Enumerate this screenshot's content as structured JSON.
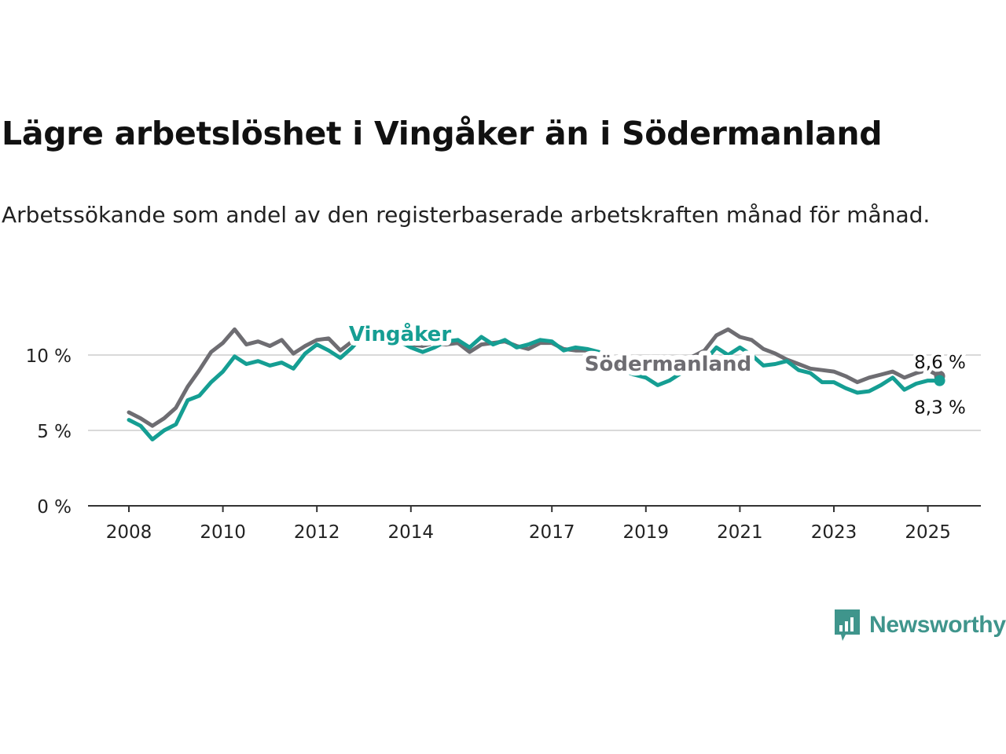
{
  "title": "Lägre arbetslöshet i Vingåker än i Södermanland",
  "subtitle": "Arbetssökande som andel av den registerbaserade arbetskraften månad för månad.",
  "brand": "Newsworthy",
  "chart_data": {
    "type": "line",
    "x_ticks": [
      "2008",
      "2010",
      "2012",
      "2014",
      "2017",
      "2019",
      "2021",
      "2023",
      "2025"
    ],
    "y_ticks": [
      "0 %",
      "5 %",
      "10 %"
    ],
    "ylim": [
      0,
      12
    ],
    "grid": "horizontal",
    "series": [
      {
        "name": "Södermanland",
        "color": "#6e6d72",
        "end_label": "8,6 %",
        "points": [
          [
            "2008-01",
            6.2
          ],
          [
            "2008-04",
            5.8
          ],
          [
            "2008-07",
            5.3
          ],
          [
            "2008-10",
            5.8
          ],
          [
            "2009-01",
            6.5
          ],
          [
            "2009-04",
            7.9
          ],
          [
            "2009-07",
            9.0
          ],
          [
            "2009-10",
            10.2
          ],
          [
            "2010-01",
            10.8
          ],
          [
            "2010-04",
            11.7
          ],
          [
            "2010-07",
            10.7
          ],
          [
            "2010-10",
            10.9
          ],
          [
            "2011-01",
            10.6
          ],
          [
            "2011-04",
            11.0
          ],
          [
            "2011-07",
            10.1
          ],
          [
            "2011-10",
            10.6
          ],
          [
            "2012-01",
            11.0
          ],
          [
            "2012-04",
            11.1
          ],
          [
            "2012-07",
            10.3
          ],
          [
            "2012-10",
            10.9
          ],
          [
            "2013-01",
            11.5
          ],
          [
            "2013-04",
            11.3
          ],
          [
            "2013-07",
            11.0
          ],
          [
            "2013-10",
            10.9
          ],
          [
            "2014-01",
            10.7
          ],
          [
            "2014-04",
            10.6
          ],
          [
            "2014-07",
            10.8
          ],
          [
            "2014-10",
            10.7
          ],
          [
            "2015-01",
            10.8
          ],
          [
            "2015-04",
            10.2
          ],
          [
            "2015-07",
            10.7
          ],
          [
            "2015-10",
            10.8
          ],
          [
            "2016-01",
            10.9
          ],
          [
            "2016-04",
            10.6
          ],
          [
            "2016-07",
            10.4
          ],
          [
            "2016-10",
            10.8
          ],
          [
            "2017-01",
            10.8
          ],
          [
            "2017-04",
            10.4
          ],
          [
            "2017-07",
            10.3
          ],
          [
            "2017-10",
            10.3
          ],
          [
            "2018-01",
            10.1
          ],
          [
            "2018-04",
            9.5
          ],
          [
            "2018-07",
            9.3
          ],
          [
            "2018-10",
            9.1
          ],
          [
            "2019-01",
            9.0
          ],
          [
            "2019-04",
            9.0
          ],
          [
            "2019-07",
            9.3
          ],
          [
            "2019-10",
            9.6
          ],
          [
            "2020-01",
            9.9
          ],
          [
            "2020-04",
            10.3
          ],
          [
            "2020-07",
            11.3
          ],
          [
            "2020-10",
            11.7
          ],
          [
            "2021-01",
            11.2
          ],
          [
            "2021-04",
            11.0
          ],
          [
            "2021-07",
            10.4
          ],
          [
            "2021-10",
            10.1
          ],
          [
            "2022-01",
            9.7
          ],
          [
            "2022-04",
            9.4
          ],
          [
            "2022-07",
            9.1
          ],
          [
            "2022-10",
            9.0
          ],
          [
            "2023-01",
            8.9
          ],
          [
            "2023-04",
            8.6
          ],
          [
            "2023-07",
            8.2
          ],
          [
            "2023-10",
            8.5
          ],
          [
            "2024-01",
            8.7
          ],
          [
            "2024-04",
            8.9
          ],
          [
            "2024-07",
            8.5
          ],
          [
            "2024-10",
            8.8
          ],
          [
            "2025-01",
            9.0
          ],
          [
            "2025-04",
            8.6
          ]
        ]
      },
      {
        "name": "Vingåker",
        "color": "#159e93",
        "end_label": "8,3 %",
        "points": [
          [
            "2008-01",
            5.7
          ],
          [
            "2008-04",
            5.3
          ],
          [
            "2008-07",
            4.4
          ],
          [
            "2008-10",
            5.0
          ],
          [
            "2009-01",
            5.4
          ],
          [
            "2009-04",
            7.0
          ],
          [
            "2009-07",
            7.3
          ],
          [
            "2009-10",
            8.2
          ],
          [
            "2010-01",
            8.9
          ],
          [
            "2010-04",
            9.9
          ],
          [
            "2010-07",
            9.4
          ],
          [
            "2010-10",
            9.6
          ],
          [
            "2011-01",
            9.3
          ],
          [
            "2011-04",
            9.5
          ],
          [
            "2011-07",
            9.1
          ],
          [
            "2011-10",
            10.1
          ],
          [
            "2012-01",
            10.7
          ],
          [
            "2012-04",
            10.3
          ],
          [
            "2012-07",
            9.8
          ],
          [
            "2012-10",
            10.5
          ],
          [
            "2013-01",
            11.4
          ],
          [
            "2013-04",
            11.0
          ],
          [
            "2013-07",
            10.8
          ],
          [
            "2013-10",
            10.9
          ],
          [
            "2014-01",
            10.5
          ],
          [
            "2014-04",
            10.2
          ],
          [
            "2014-07",
            10.5
          ],
          [
            "2014-10",
            10.9
          ],
          [
            "2015-01",
            11.0
          ],
          [
            "2015-04",
            10.5
          ],
          [
            "2015-07",
            11.2
          ],
          [
            "2015-10",
            10.7
          ],
          [
            "2016-01",
            11.0
          ],
          [
            "2016-04",
            10.5
          ],
          [
            "2016-07",
            10.7
          ],
          [
            "2016-10",
            11.0
          ],
          [
            "2017-01",
            10.9
          ],
          [
            "2017-04",
            10.3
          ],
          [
            "2017-07",
            10.5
          ],
          [
            "2017-10",
            10.4
          ],
          [
            "2018-01",
            10.2
          ],
          [
            "2018-04",
            9.5
          ],
          [
            "2018-07",
            9.0
          ],
          [
            "2018-10",
            8.7
          ],
          [
            "2019-01",
            8.5
          ],
          [
            "2019-04",
            8.0
          ],
          [
            "2019-07",
            8.3
          ],
          [
            "2019-10",
            8.8
          ],
          [
            "2020-01",
            9.2
          ],
          [
            "2020-04",
            9.6
          ],
          [
            "2020-07",
            10.5
          ],
          [
            "2020-10",
            10.0
          ],
          [
            "2021-01",
            10.5
          ],
          [
            "2021-04",
            10.0
          ],
          [
            "2021-07",
            9.3
          ],
          [
            "2021-10",
            9.4
          ],
          [
            "2022-01",
            9.6
          ],
          [
            "2022-04",
            9.0
          ],
          [
            "2022-07",
            8.8
          ],
          [
            "2022-10",
            8.2
          ],
          [
            "2023-01",
            8.2
          ],
          [
            "2023-04",
            7.8
          ],
          [
            "2023-07",
            7.5
          ],
          [
            "2023-10",
            7.6
          ],
          [
            "2024-01",
            8.0
          ],
          [
            "2024-04",
            8.5
          ],
          [
            "2024-07",
            7.7
          ],
          [
            "2024-10",
            8.1
          ],
          [
            "2025-01",
            8.3
          ],
          [
            "2025-04",
            8.3
          ]
        ]
      }
    ]
  }
}
